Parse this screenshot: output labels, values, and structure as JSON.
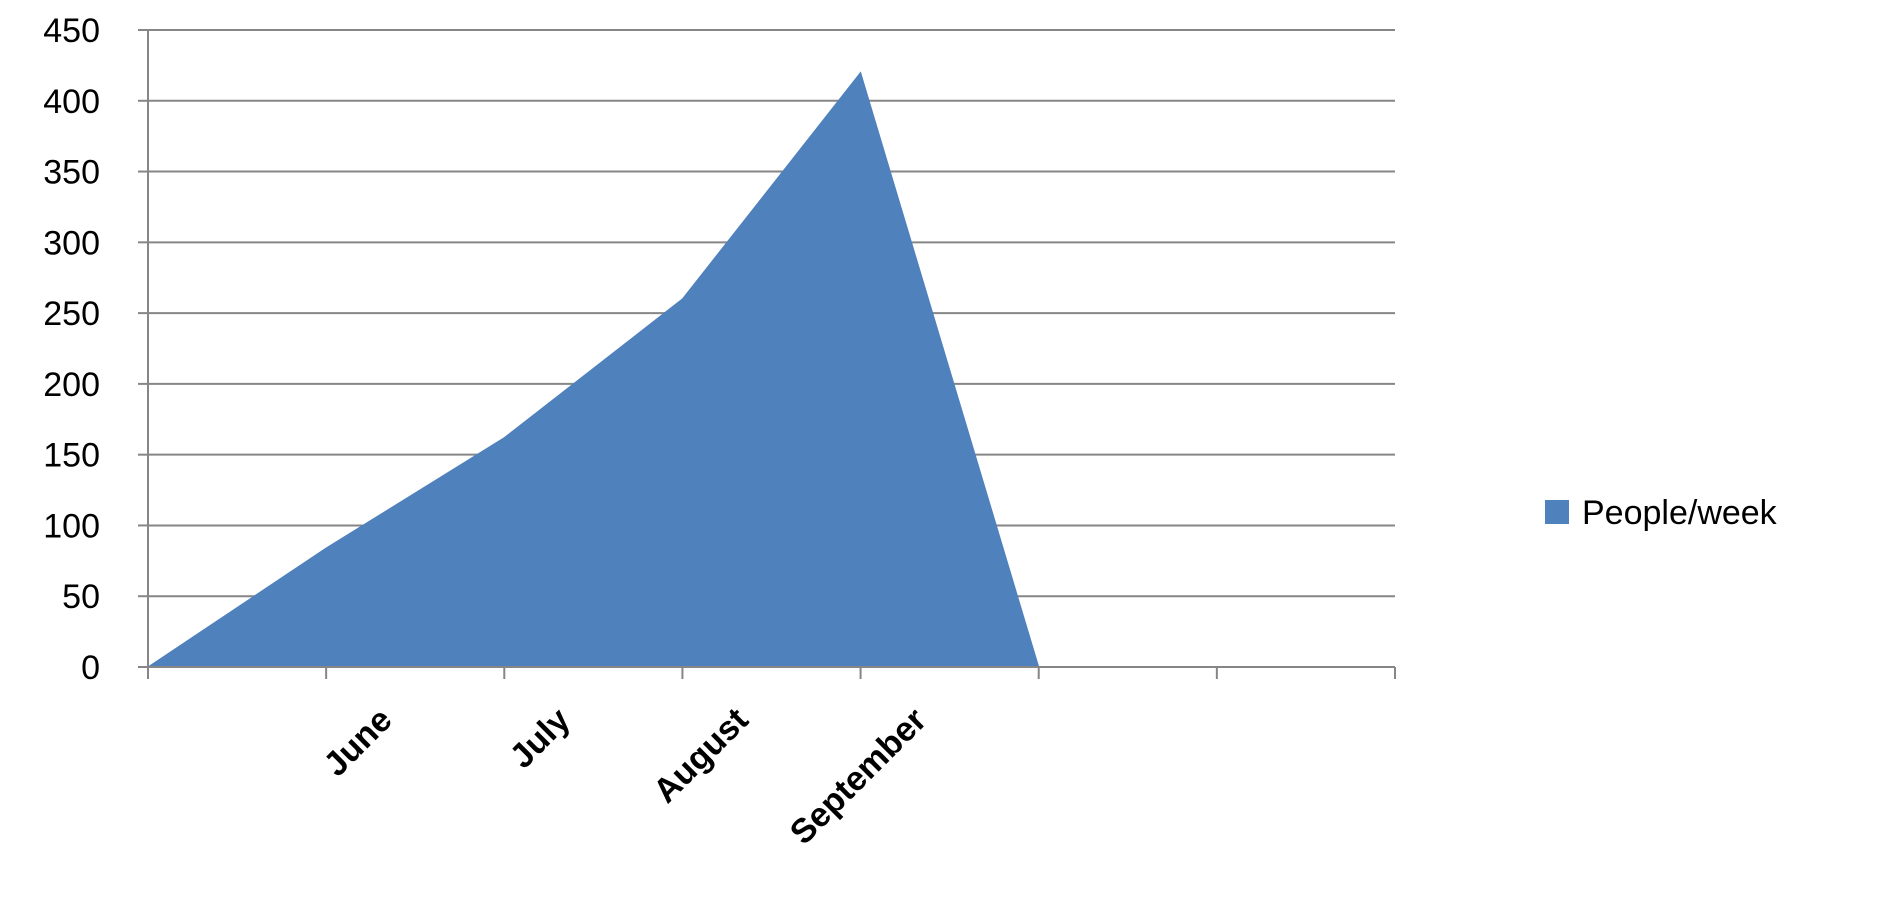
{
  "chart_data": {
    "type": "area",
    "title": "",
    "xlabel": "",
    "ylabel": "",
    "categories": [
      "",
      "June",
      "July",
      "August",
      "September",
      "",
      "",
      ""
    ],
    "series": [
      {
        "name": "People/week",
        "color": "#4F81BD",
        "values": [
          0,
          84,
          162,
          260,
          420,
          0,
          null,
          null
        ]
      }
    ],
    "ylim": [
      0,
      450
    ],
    "yticks": [
      0,
      50,
      100,
      150,
      200,
      250,
      300,
      350,
      400,
      450
    ],
    "grid": true,
    "legend": "right"
  }
}
